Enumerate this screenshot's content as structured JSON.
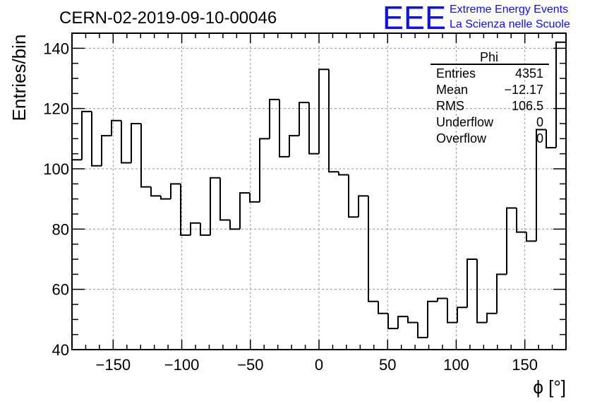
{
  "header": {
    "run_title": "CERN-02-2019-09-10-00046",
    "logo_mark": "EEE",
    "logo_line1": "Extreme Energy Events",
    "logo_line2": "La Scienza nelle Scuole"
  },
  "colors": {
    "logo": "#1010ee",
    "line": "#000000",
    "grid": "#999999"
  },
  "stats": {
    "title": "Phi",
    "rows": [
      {
        "label": "Entries",
        "value": "4351"
      },
      {
        "label": "Mean",
        "value": "−12.17"
      },
      {
        "label": "RMS",
        "value": "106.5"
      },
      {
        "label": "Underflow",
        "value": "0"
      },
      {
        "label": "Overflow",
        "value": "0"
      }
    ]
  },
  "chart_data": {
    "type": "histogram",
    "title": "CERN-02-2019-09-10-00046",
    "xlabel": "ϕ [°]",
    "ylabel": "Entries/bin",
    "xlim": [
      -180,
      180
    ],
    "ylim": [
      40,
      145
    ],
    "bin_width": 7.2,
    "grid": true,
    "x_ticks": [
      -150,
      -100,
      -50,
      0,
      50,
      100,
      150
    ],
    "x_tick_labels": [
      "−150",
      "−100",
      "−50",
      "0",
      "50",
      "100",
      "150"
    ],
    "y_ticks": [
      40,
      60,
      80,
      100,
      120,
      140
    ],
    "y_tick_labels": [
      "40",
      "60",
      "80",
      "100",
      "120",
      "140"
    ],
    "values": [
      103,
      119,
      101,
      111,
      116,
      102,
      115,
      94,
      91,
      90,
      95,
      78,
      82,
      78,
      97,
      83,
      80,
      92,
      89,
      110,
      123,
      104,
      111,
      122,
      105,
      133,
      99,
      98,
      84,
      91,
      56,
      52,
      47,
      51,
      49,
      44,
      56,
      57,
      49,
      54,
      70,
      49,
      52,
      65,
      87,
      79,
      76,
      113,
      107,
      142
    ]
  }
}
